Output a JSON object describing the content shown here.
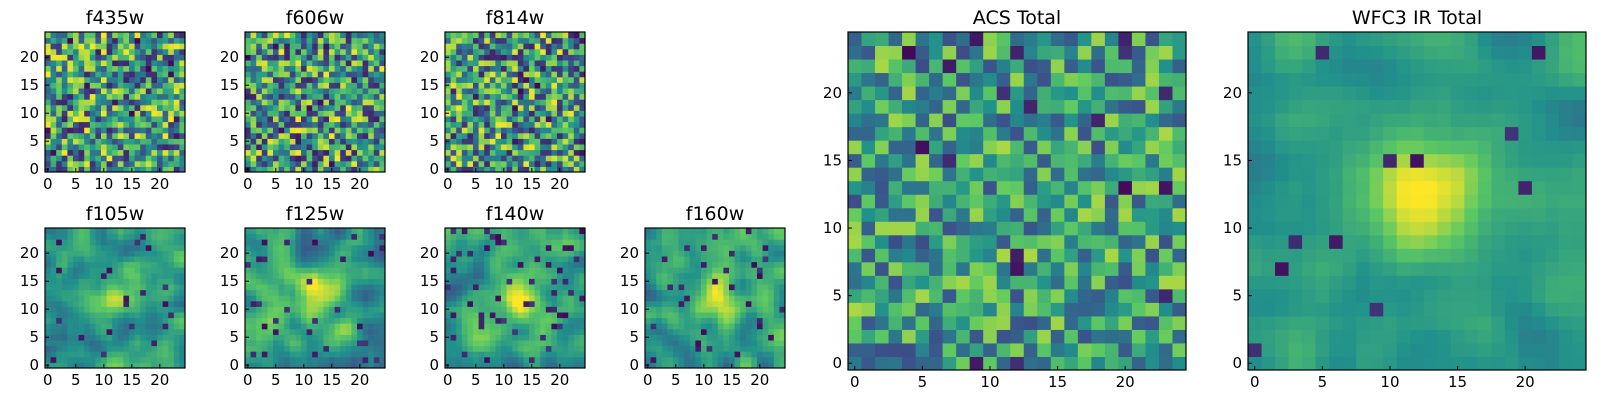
{
  "chart_data": [
    {
      "type": "heatmap",
      "title": "f435w",
      "xticks": [
        "0",
        "5",
        "10",
        "15",
        "20"
      ],
      "yticks": [
        "0",
        "5",
        "10",
        "15",
        "20"
      ],
      "xlim": [
        0,
        25
      ],
      "ylim": [
        0,
        25
      ],
      "colormap": "viridis",
      "seed": 11,
      "blob": 0.0,
      "noise": 0.55,
      "cold": 0.05,
      "block": 1
    },
    {
      "type": "heatmap",
      "title": "f606w",
      "xticks": [
        "0",
        "5",
        "10",
        "15",
        "20"
      ],
      "yticks": [
        "0",
        "5",
        "10",
        "15",
        "20"
      ],
      "xlim": [
        0,
        25
      ],
      "ylim": [
        0,
        25
      ],
      "colormap": "viridis",
      "seed": 23,
      "blob": 0.0,
      "noise": 0.55,
      "cold": 0.04,
      "block": 1
    },
    {
      "type": "heatmap",
      "title": "f814w",
      "xticks": [
        "0",
        "5",
        "10",
        "15",
        "20"
      ],
      "yticks": [
        "0",
        "5",
        "10",
        "15",
        "20"
      ],
      "xlim": [
        0,
        25
      ],
      "ylim": [
        0,
        25
      ],
      "colormap": "viridis",
      "seed": 37,
      "blob": 0.0,
      "noise": 0.55,
      "cold": 0.05,
      "block": 1
    },
    {
      "type": "heatmap",
      "title": "f105w",
      "xticks": [
        "0",
        "5",
        "10",
        "15",
        "20"
      ],
      "yticks": [
        "0",
        "5",
        "10",
        "15",
        "20"
      ],
      "xlim": [
        0,
        25
      ],
      "ylim": [
        0,
        25
      ],
      "colormap": "viridis",
      "seed": 41,
      "blob": 0.35,
      "noise": 0.3,
      "cold": 0.04,
      "block": 2
    },
    {
      "type": "heatmap",
      "title": "f125w",
      "xticks": [
        "0",
        "5",
        "10",
        "15",
        "20"
      ],
      "yticks": [
        "0",
        "5",
        "10",
        "15",
        "20"
      ],
      "xlim": [
        0,
        25
      ],
      "ylim": [
        0,
        25
      ],
      "colormap": "viridis",
      "seed": 53,
      "blob": 0.35,
      "noise": 0.35,
      "cold": 0.07,
      "block": 2
    },
    {
      "type": "heatmap",
      "title": "f140w",
      "xticks": [
        "0",
        "5",
        "10",
        "15",
        "20"
      ],
      "yticks": [
        "0",
        "5",
        "10",
        "15",
        "20"
      ],
      "xlim": [
        0,
        25
      ],
      "ylim": [
        0,
        25
      ],
      "colormap": "viridis",
      "seed": 67,
      "blob": 0.35,
      "noise": 0.32,
      "cold": 0.06,
      "block": 2
    },
    {
      "type": "heatmap",
      "title": "f160w",
      "xticks": [
        "0",
        "5",
        "10",
        "15",
        "20"
      ],
      "yticks": [
        "0",
        "5",
        "10",
        "15",
        "20"
      ],
      "xlim": [
        0,
        25
      ],
      "ylim": [
        0,
        25
      ],
      "colormap": "viridis",
      "seed": 79,
      "blob": 0.4,
      "noise": 0.3,
      "cold": 0.06,
      "block": 2
    },
    {
      "type": "heatmap",
      "title": "ACS Total",
      "xticks": [
        "0",
        "5",
        "10",
        "15",
        "20"
      ],
      "yticks": [
        "0",
        "5",
        "10",
        "15",
        "20"
      ],
      "xlim": [
        0,
        25
      ],
      "ylim": [
        0,
        25
      ],
      "colormap": "viridis",
      "seed": 97,
      "blob": 0.0,
      "noise": 0.4,
      "cold": 0.035,
      "block": 1
    },
    {
      "type": "heatmap",
      "title": "WFC3 IR Total",
      "xticks": [
        "0",
        "5",
        "10",
        "15",
        "20"
      ],
      "yticks": [
        "0",
        "5",
        "10",
        "15",
        "20"
      ],
      "xlim": [
        0,
        25
      ],
      "ylim": [
        0,
        25
      ],
      "colormap": "viridis",
      "seed": 113,
      "blob": 0.45,
      "noise": 0.18,
      "cold": 0.02,
      "block": 2
    }
  ],
  "colors": {
    "viridis": [
      "#440154",
      "#3b528b",
      "#21918c",
      "#5ec962",
      "#fde725"
    ],
    "axis": "#000000",
    "background": "#ffffff"
  }
}
